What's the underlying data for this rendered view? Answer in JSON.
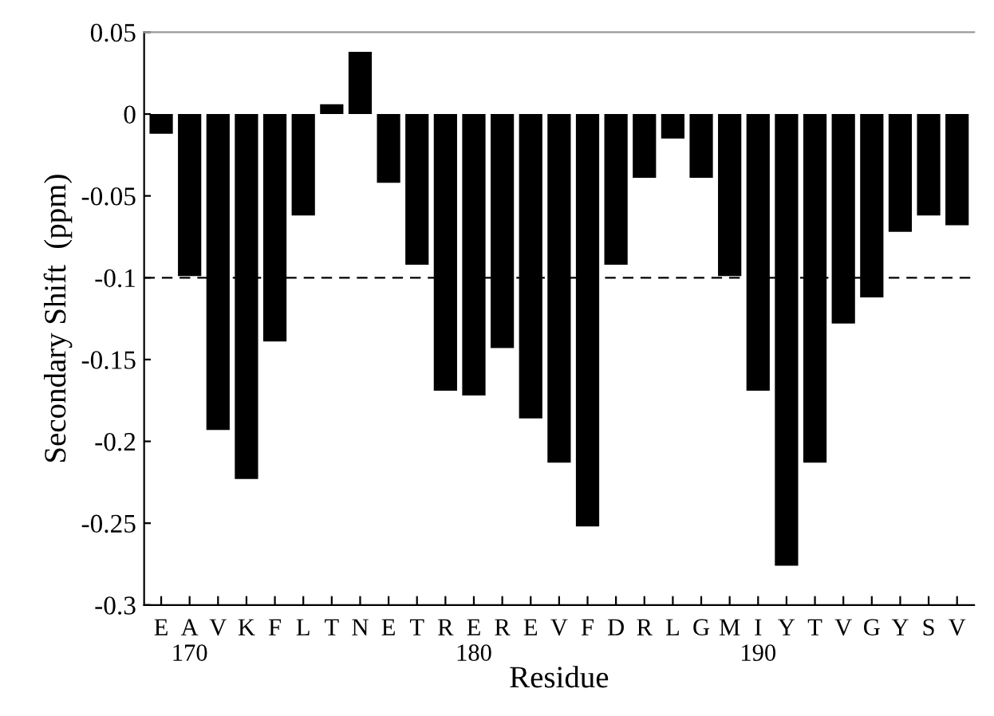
{
  "chart_data": {
    "type": "bar",
    "xlabel": "Residue",
    "ylabel": "Secondary Shift  (ppm)",
    "categories": [
      "E",
      "A\n170",
      "V",
      "K",
      "F",
      "L",
      "T",
      "N",
      "E",
      "T",
      "R",
      "E\n180",
      "R",
      "E",
      "V",
      "F",
      "D",
      "R",
      "L",
      "G",
      "M",
      "I\n190",
      "Y",
      "T",
      "V",
      "G",
      "Y",
      "S",
      "V"
    ],
    "values": [
      -0.012,
      -0.099,
      -0.193,
      -0.223,
      -0.139,
      -0.062,
      0.006,
      0.038,
      -0.042,
      -0.092,
      -0.169,
      -0.172,
      -0.143,
      -0.186,
      -0.213,
      -0.252,
      -0.092,
      -0.039,
      -0.015,
      -0.039,
      -0.099,
      -0.169,
      -0.276,
      -0.213,
      -0.128,
      -0.112,
      -0.072,
      -0.062,
      -0.068
    ],
    "color": "#000000",
    "ylim": [
      -0.3,
      0.05
    ],
    "yticks": [
      {
        "value": 0.05,
        "label": "0.05"
      },
      {
        "value": 0,
        "label": "0"
      },
      {
        "value": -0.05,
        "label": "-0.05"
      },
      {
        "value": -0.1,
        "label": "-0.1"
      },
      {
        "value": -0.15,
        "label": "-0.15"
      },
      {
        "value": -0.2,
        "label": "-0.2"
      },
      {
        "value": -0.25,
        "label": "-0.25"
      },
      {
        "value": -0.3,
        "label": "-0.3"
      }
    ],
    "ref_lines": [
      {
        "axis": "y",
        "value": -0.1,
        "label": null,
        "color": "#000000",
        "line_style": "dashed"
      }
    ],
    "grid": false
  }
}
